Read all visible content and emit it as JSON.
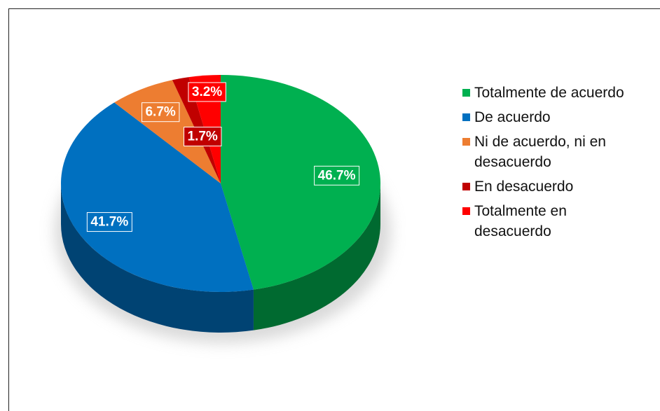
{
  "chart_data": {
    "type": "pie",
    "series": [
      {
        "name": "Totalmente de acuerdo",
        "color": "#00b050",
        "values": [
          46.7
        ],
        "value_labels": [
          "46.7%"
        ]
      },
      {
        "name": "De acuerdo",
        "color": "#0070c0",
        "values": [
          41.7
        ],
        "value_labels": [
          "41.7%"
        ]
      },
      {
        "name": "Ni de acuerdo, ni en desacuerdo",
        "color": "#ed7d31",
        "values": [
          6.7
        ],
        "value_labels": [
          "6.7%"
        ]
      },
      {
        "name": "En desacuerdo",
        "color": "#c00000",
        "values": [
          1.7
        ],
        "value_labels": [
          "1.7%"
        ]
      },
      {
        "name": "Totalmente en desacuerdo",
        "color": "#ff0000",
        "values": [
          3.2
        ],
        "value_labels": [
          "3.2%"
        ]
      }
    ],
    "legend": "right"
  }
}
